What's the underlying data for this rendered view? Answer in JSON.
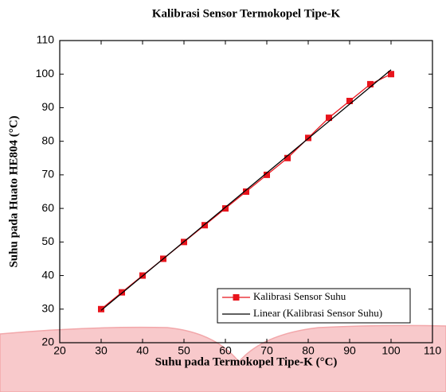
{
  "chart_data": {
    "type": "line",
    "title": "Kalibrasi Sensor Termokopel Tipe-K",
    "x_label": "Suhu pada Termokopel Tipe-K (°C)",
    "y_label": "Suhu pada Huato HE804 (°C)",
    "series": [
      {
        "name": "Kalibrasi Sensor Suhu",
        "color": "#e8141c",
        "marker": "square",
        "x": [
          30,
          35,
          40,
          45,
          50,
          55,
          60,
          65,
          70,
          75,
          80,
          85,
          90,
          95,
          100
        ],
        "values": [
          30,
          35,
          40,
          45,
          50,
          55,
          60,
          65,
          70,
          75,
          81,
          87,
          92,
          97,
          100
        ]
      },
      {
        "name": "Linear (Kalibrasi Sensor Suhu)",
        "color": "#000000",
        "x": [
          30,
          100
        ],
        "values": [
          29.64,
          101.29
        ]
      }
    ],
    "xlim": [
      20,
      110
    ],
    "xticks": [
      20,
      30,
      40,
      50,
      60,
      70,
      80,
      90,
      100,
      110
    ],
    "ylim": [
      20,
      110
    ],
    "yticks": [
      20,
      30,
      40,
      50,
      60,
      70,
      80,
      90,
      100,
      110
    ],
    "legend": "lower right"
  }
}
